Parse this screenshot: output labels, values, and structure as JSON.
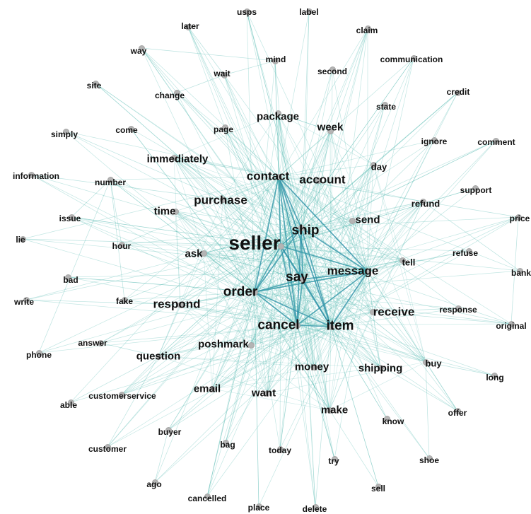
{
  "network": {
    "nodes": [
      {
        "id": "seller",
        "label": "seller",
        "hub": true
      },
      {
        "id": "cancel",
        "label": "cancel",
        "hub": true
      },
      {
        "id": "order",
        "label": "order",
        "hub": true
      },
      {
        "id": "say",
        "label": "say",
        "hub": true
      },
      {
        "id": "item",
        "label": "item",
        "hub": true
      },
      {
        "id": "ship",
        "label": "ship",
        "hub": true
      },
      {
        "id": "contact",
        "label": "contact",
        "hub": true
      },
      {
        "id": "message",
        "label": "message",
        "hub": true
      },
      {
        "id": "purchase",
        "label": "purchase",
        "hub": false
      },
      {
        "id": "account",
        "label": "account",
        "hub": false
      },
      {
        "id": "respond",
        "label": "respond",
        "hub": false
      },
      {
        "id": "receive",
        "label": "receive",
        "hub": false
      },
      {
        "id": "poshmark",
        "label": "poshmark",
        "hub": false
      },
      {
        "id": "money",
        "label": "money",
        "hub": false
      },
      {
        "id": "send",
        "label": "send",
        "hub": false
      },
      {
        "id": "want",
        "label": "want",
        "hub": false
      },
      {
        "id": "make",
        "label": "make",
        "hub": false
      },
      {
        "id": "shipping",
        "label": "shipping",
        "hub": false
      },
      {
        "id": "email",
        "label": "email",
        "hub": false
      },
      {
        "id": "question",
        "label": "question",
        "hub": false
      },
      {
        "id": "time",
        "label": "time",
        "hub": false
      },
      {
        "id": "ask",
        "label": "ask",
        "hub": false
      },
      {
        "id": "immediately",
        "label": "immediately",
        "hub": false
      },
      {
        "id": "package",
        "label": "package",
        "hub": false
      },
      {
        "id": "week",
        "label": "week",
        "hub": false
      },
      {
        "id": "day",
        "label": "day",
        "hub": false
      },
      {
        "id": "refund",
        "label": "refund",
        "hub": false
      },
      {
        "id": "tell",
        "label": "tell",
        "hub": false
      },
      {
        "id": "buy",
        "label": "buy",
        "hub": false
      },
      {
        "id": "usps",
        "label": "usps",
        "hub": false
      },
      {
        "id": "label",
        "label": "label",
        "hub": false
      },
      {
        "id": "later",
        "label": "later",
        "hub": false
      },
      {
        "id": "claim",
        "label": "claim",
        "hub": false
      },
      {
        "id": "way",
        "label": "way",
        "hub": false
      },
      {
        "id": "mind",
        "label": "mind",
        "hub": false
      },
      {
        "id": "communication",
        "label": "communication",
        "hub": false
      },
      {
        "id": "wait",
        "label": "wait",
        "hub": false
      },
      {
        "id": "second",
        "label": "second",
        "hub": false
      },
      {
        "id": "site",
        "label": "site",
        "hub": false
      },
      {
        "id": "credit",
        "label": "credit",
        "hub": false
      },
      {
        "id": "change",
        "label": "change",
        "hub": false
      },
      {
        "id": "state",
        "label": "state",
        "hub": false
      },
      {
        "id": "simply",
        "label": "simply",
        "hub": false
      },
      {
        "id": "come",
        "label": "come",
        "hub": false
      },
      {
        "id": "page",
        "label": "page",
        "hub": false
      },
      {
        "id": "ignore",
        "label": "ignore",
        "hub": false
      },
      {
        "id": "comment",
        "label": "comment",
        "hub": false
      },
      {
        "id": "information",
        "label": "information",
        "hub": false
      },
      {
        "id": "number",
        "label": "number",
        "hub": false
      },
      {
        "id": "support",
        "label": "support",
        "hub": false
      },
      {
        "id": "issue",
        "label": "issue",
        "hub": false
      },
      {
        "id": "price",
        "label": "price",
        "hub": false
      },
      {
        "id": "lie",
        "label": "lie",
        "hub": false
      },
      {
        "id": "hour",
        "label": "hour",
        "hub": false
      },
      {
        "id": "refuse",
        "label": "refuse",
        "hub": false
      },
      {
        "id": "bad",
        "label": "bad",
        "hub": false
      },
      {
        "id": "bank",
        "label": "bank",
        "hub": false
      },
      {
        "id": "write",
        "label": "write",
        "hub": false
      },
      {
        "id": "fake",
        "label": "fake",
        "hub": false
      },
      {
        "id": "response",
        "label": "response",
        "hub": false
      },
      {
        "id": "original",
        "label": "original",
        "hub": false
      },
      {
        "id": "answer",
        "label": "answer",
        "hub": false
      },
      {
        "id": "phone",
        "label": "phone",
        "hub": false
      },
      {
        "id": "long",
        "label": "long",
        "hub": false
      },
      {
        "id": "customerservice",
        "label": "customerservice",
        "hub": false
      },
      {
        "id": "able",
        "label": "able",
        "hub": false
      },
      {
        "id": "offer",
        "label": "offer",
        "hub": false
      },
      {
        "id": "buyer",
        "label": "buyer",
        "hub": false
      },
      {
        "id": "know",
        "label": "know",
        "hub": false
      },
      {
        "id": "customer",
        "label": "customer",
        "hub": false
      },
      {
        "id": "bag",
        "label": "bag",
        "hub": false
      },
      {
        "id": "today",
        "label": "today",
        "hub": false
      },
      {
        "id": "shoe",
        "label": "shoe",
        "hub": false
      },
      {
        "id": "try",
        "label": "try",
        "hub": false
      },
      {
        "id": "ago",
        "label": "ago",
        "hub": false
      },
      {
        "id": "sell",
        "label": "sell",
        "hub": false
      },
      {
        "id": "cancelled",
        "label": "cancelled",
        "hub": false
      },
      {
        "id": "place",
        "label": "place",
        "hub": false
      },
      {
        "id": "delete",
        "label": "delete",
        "hub": false
      }
    ],
    "colors": {
      "edge": "#4fb7b0",
      "edge_strong": "#2b8fa8",
      "node": "#b4b4b4",
      "label": "#111111",
      "background": "#ffffff"
    }
  }
}
